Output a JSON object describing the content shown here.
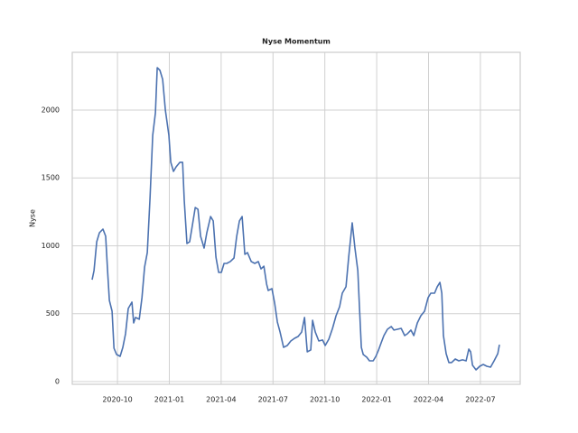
{
  "chart_data": {
    "type": "line",
    "title": "Nyse Momentum",
    "y_label": "Nyse",
    "grid": true,
    "xlim": [
      2020.532,
      2022.692
    ],
    "ylim": [
      -20,
      2425
    ],
    "xticks": [
      {
        "value": 2020.75,
        "label": "2020-10"
      },
      {
        "value": 2021.0,
        "label": "2021-01"
      },
      {
        "value": 2021.25,
        "label": "2021-04"
      },
      {
        "value": 2021.5,
        "label": "2021-07"
      },
      {
        "value": 2021.75,
        "label": "2021-10"
      },
      {
        "value": 2022.0,
        "label": "2022-01"
      },
      {
        "value": 2022.25,
        "label": "2022-04"
      },
      {
        "value": 2022.5,
        "label": "2022-07"
      }
    ],
    "yticks": [
      0,
      500,
      1000,
      1500,
      2000
    ],
    "x": [
      2020.628,
      2020.637,
      2020.65,
      2020.663,
      2020.68,
      2020.693,
      2020.702,
      2020.711,
      2020.724,
      2020.733,
      2020.746,
      2020.763,
      2020.776,
      2020.789,
      2020.802,
      2020.82,
      2020.828,
      2020.837,
      2020.855,
      2020.868,
      2020.881,
      2020.894,
      2020.907,
      2020.92,
      2020.933,
      2020.942,
      2020.955,
      2020.968,
      2020.981,
      2020.998,
      2021.007,
      2021.02,
      2021.033,
      2021.051,
      2021.064,
      2021.072,
      2021.085,
      2021.098,
      2021.111,
      2021.125,
      2021.138,
      2021.151,
      2021.168,
      2021.181,
      2021.199,
      2021.212,
      2021.225,
      2021.238,
      2021.251,
      2021.264,
      2021.277,
      2021.294,
      2021.312,
      2021.325,
      2021.338,
      2021.351,
      2021.364,
      2021.377,
      2021.395,
      2021.412,
      2021.429,
      2021.442,
      2021.456,
      2021.469,
      2021.477,
      2021.495,
      2021.508,
      2021.521,
      2021.534,
      2021.551,
      2021.569,
      2021.586,
      2021.604,
      2021.621,
      2021.638,
      2021.652,
      2021.665,
      2021.682,
      2021.691,
      2021.704,
      2021.721,
      2021.739,
      2021.752,
      2021.769,
      2021.787,
      2021.804,
      2021.821,
      2021.834,
      2021.852,
      2021.865,
      2021.882,
      2021.895,
      2021.909,
      2021.917,
      2021.926,
      2021.935,
      2021.952,
      2021.965,
      2021.983,
      2021.996,
      2022.009,
      2022.022,
      2022.035,
      2022.052,
      2022.07,
      2022.083,
      2022.1,
      2022.118,
      2022.135,
      2022.148,
      2022.165,
      2022.179,
      2022.196,
      2022.213,
      2022.231,
      2022.248,
      2022.261,
      2022.279,
      2022.292,
      2022.305,
      2022.314,
      2022.322,
      2022.335,
      2022.348,
      2022.361,
      2022.379,
      2022.396,
      2022.414,
      2022.431,
      2022.444,
      2022.453,
      2022.462,
      2022.479,
      2022.497,
      2022.514,
      2022.531,
      2022.549,
      2022.566,
      2022.584,
      2022.592
    ],
    "series": [
      {
        "name": "Nyse",
        "color": "#4c72b0",
        "values": [
          750,
          817,
          1030,
          1096,
          1123,
          1070,
          830,
          598,
          518,
          246,
          199,
          186,
          252,
          352,
          538,
          585,
          432,
          472,
          459,
          618,
          844,
          950,
          1349,
          1814,
          1980,
          2312,
          2292,
          2226,
          2000,
          1814,
          1615,
          1548,
          1581,
          1615,
          1615,
          1336,
          1017,
          1030,
          1150,
          1282,
          1269,
          1070,
          983,
          1096,
          1216,
          1183,
          917,
          804,
          804,
          870,
          870,
          884,
          910,
          1070,
          1183,
          1216,
          937,
          950,
          884,
          870,
          884,
          830,
          850,
          718,
          671,
          684,
          578,
          439,
          365,
          252,
          266,
          299,
          319,
          332,
          365,
          472,
          219,
          233,
          452,
          365,
          299,
          306,
          266,
          312,
          392,
          485,
          551,
          651,
          698,
          917,
          1169,
          983,
          817,
          551,
          252,
          199,
          179,
          153,
          153,
          186,
          233,
          286,
          339,
          385,
          405,
          379,
          385,
          392,
          339,
          352,
          379,
          339,
          432,
          485,
          518,
          618,
          651,
          651,
          698,
          731,
          651,
          339,
          206,
          140,
          140,
          166,
          153,
          160,
          153,
          239,
          219,
          120,
          86,
          113,
          126,
          113,
          106,
          153,
          206,
          272
        ]
      }
    ]
  }
}
